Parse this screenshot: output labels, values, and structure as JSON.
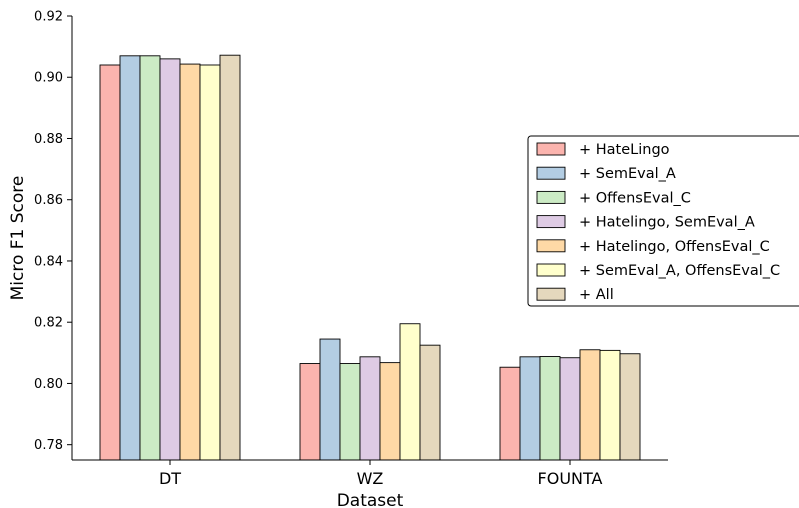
{
  "chart_data": {
    "type": "bar",
    "xlabel": "Dataset",
    "ylabel": "Micro F1 Score",
    "ylim": [
      0.775,
      0.92
    ],
    "yticks": [
      "0.78",
      "0.80",
      "0.82",
      "0.84",
      "0.86",
      "0.88",
      "0.90",
      "0.92"
    ],
    "categories": [
      "DT",
      "WZ",
      "FOUNTA"
    ],
    "grid": false,
    "legend_position": "right",
    "series": [
      {
        "name": "+ HateLingo",
        "color": "#fbb4ae",
        "values": [
          0.904,
          0.8065,
          0.8053
        ]
      },
      {
        "name": "+ SemEval_A",
        "color": "#b3cde3",
        "values": [
          0.907,
          0.8145,
          0.8087
        ]
      },
      {
        "name": "+ OffensEval_C",
        "color": "#ccebc5",
        "values": [
          0.907,
          0.8065,
          0.8088
        ]
      },
      {
        "name": "+ Hatelingo, SemEval_A",
        "color": "#decbe4",
        "values": [
          0.906,
          0.8087,
          0.8084
        ]
      },
      {
        "name": "+ Hatelingo, OffensEval_C",
        "color": "#fed9a6",
        "values": [
          0.9043,
          0.8068,
          0.811
        ]
      },
      {
        "name": "+ SemEval_A, OffensEval_C",
        "color": "#ffffcc",
        "values": [
          0.904,
          0.8195,
          0.8108
        ]
      },
      {
        "name": "+ All",
        "color": "#e5d8bd",
        "values": [
          0.9072,
          0.8125,
          0.8097
        ]
      }
    ]
  }
}
